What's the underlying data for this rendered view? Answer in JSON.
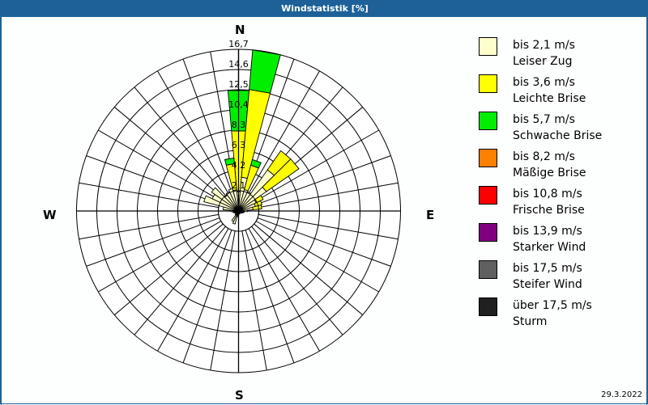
{
  "window": {
    "title": "Windstatistik [%]"
  },
  "compass": {
    "north": "N",
    "east": "E",
    "south": "S",
    "west": "W"
  },
  "date": "29.3.2022",
  "legend": [
    {
      "range": "bis 2,1 m/s",
      "name": "Leiser Zug",
      "color": "#ffffcc"
    },
    {
      "range": "bis 3,6 m/s",
      "name": "Leichte Brise",
      "color": "#ffff00"
    },
    {
      "range": "bis 5,7 m/s",
      "name": "Schwache Brise",
      "color": "#00ee00"
    },
    {
      "range": "bis 8,2 m/s",
      "name": "Mäßige Brise",
      "color": "#ff8000"
    },
    {
      "range": "bis 10,8 m/s",
      "name": "Frische Brise",
      "color": "#ff0000"
    },
    {
      "range": "bis 13,9 m/s",
      "name": "Starker Wind",
      "color": "#800080"
    },
    {
      "range": "bis 17,5 m/s",
      "name": "Steifer Wind",
      "color": "#606060"
    },
    {
      "range": "über 17,5 m/s",
      "name": "Sturm",
      "color": "#202020"
    }
  ],
  "chart_data": {
    "type": "polar-stacked-bar (wind rose)",
    "title": "Windstatistik [%]",
    "unit": "%",
    "ring_labels": [
      "2,1",
      "4,2",
      "6,3",
      "8,3",
      "10,4",
      "12,5",
      "14,6",
      "16,7"
    ],
    "rmax": 16.7,
    "sector_width_deg": 10,
    "series_names": [
      "bis 2,1 m/s",
      "bis 3,6 m/s",
      "bis 5,7 m/s"
    ],
    "series_colors": [
      "#ffffcc",
      "#ffff00",
      "#00ee00"
    ],
    "sectors_note": "cumulative stacked values per direction (degrees from N, clockwise)",
    "sectors": [
      {
        "dir": 0,
        "cum": [
          2.0,
          8.3,
          12.5
        ]
      },
      {
        "dir": 10,
        "cum": [
          3.5,
          12.6,
          16.7
        ]
      },
      {
        "dir": 20,
        "cum": [
          2.3,
          4.9,
          5.5
        ]
      },
      {
        "dir": 30,
        "cum": [
          2.2
        ]
      },
      {
        "dir": 40,
        "cum": [
          5.2,
          7.6
        ]
      },
      {
        "dir": 50,
        "cum": [
          3.5,
          7.6
        ]
      },
      {
        "dir": 60,
        "cum": [
          2.0,
          2.8
        ]
      },
      {
        "dir": 70,
        "cum": [
          1.8,
          2.5
        ]
      },
      {
        "dir": 80,
        "cum": [
          1.5,
          2.4
        ]
      },
      {
        "dir": 90,
        "cum": [
          0.9
        ]
      },
      {
        "dir": 100,
        "cum": [
          0.6
        ]
      },
      {
        "dir": 110,
        "cum": [
          0.5
        ]
      },
      {
        "dir": 120,
        "cum": [
          0.4
        ]
      },
      {
        "dir": 130,
        "cum": [
          0.3
        ]
      },
      {
        "dir": 140,
        "cum": [
          0.3
        ]
      },
      {
        "dir": 150,
        "cum": [
          0.3
        ]
      },
      {
        "dir": 160,
        "cum": [
          0.3
        ]
      },
      {
        "dir": 170,
        "cum": [
          0.3
        ]
      },
      {
        "dir": 180,
        "cum": [
          0.4
        ]
      },
      {
        "dir": 190,
        "cum": [
          0.6
        ]
      },
      {
        "dir": 200,
        "cum": [
          1.4
        ]
      },
      {
        "dir": 210,
        "cum": [
          1.2
        ]
      },
      {
        "dir": 220,
        "cum": [
          0.5
        ]
      },
      {
        "dir": 230,
        "cum": [
          0.4
        ]
      },
      {
        "dir": 240,
        "cum": [
          0.4
        ]
      },
      {
        "dir": 250,
        "cum": [
          0.5
        ]
      },
      {
        "dir": 260,
        "cum": [
          0.6
        ]
      },
      {
        "dir": 270,
        "cum": [
          0.8
        ]
      },
      {
        "dir": 280,
        "cum": [
          1.6
        ]
      },
      {
        "dir": 290,
        "cum": [
          3.7
        ]
      },
      {
        "dir": 300,
        "cum": [
          3.0
        ]
      },
      {
        "dir": 310,
        "cum": [
          3.4
        ]
      },
      {
        "dir": 320,
        "cum": [
          2.0
        ]
      },
      {
        "dir": 330,
        "cum": [
          2.2
        ]
      },
      {
        "dir": 340,
        "cum": [
          2.4
        ]
      },
      {
        "dir": 350,
        "cum": [
          2.2,
          4.9,
          5.5
        ]
      }
    ],
    "grid": true,
    "legend_position": "right"
  }
}
